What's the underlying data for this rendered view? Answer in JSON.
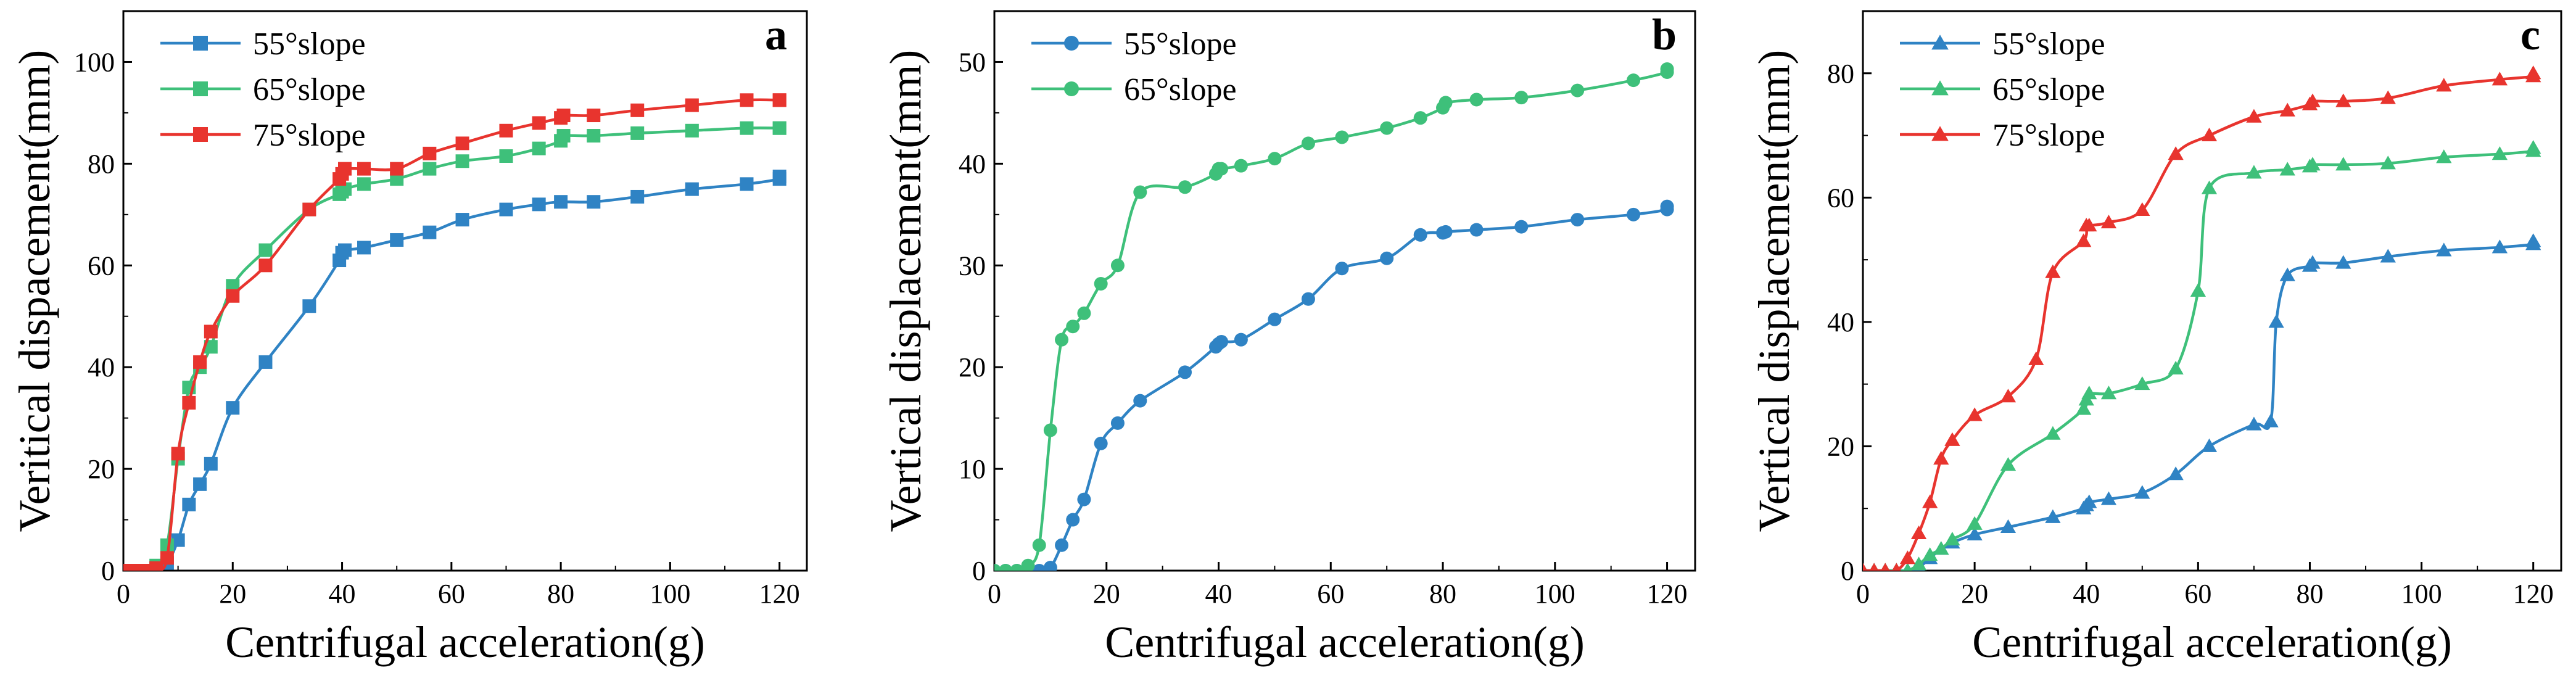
{
  "chart_data": [
    {
      "type": "line",
      "panel_label": "a",
      "xlabel": "Centrifugal acceleration(g)",
      "ylabel": "Veritical dispacement(mm)",
      "xlim": [
        0,
        125
      ],
      "ylim": [
        0,
        110
      ],
      "xticks": [
        0,
        20,
        40,
        60,
        80,
        100,
        120
      ],
      "yticks": [
        0,
        20,
        40,
        60,
        80,
        100
      ],
      "legend_position": "top-left",
      "marker": "square",
      "series": [
        {
          "name": "55°slope",
          "color": "#2f83c4",
          "x": [
            0,
            2,
            4,
            6,
            8,
            10,
            12,
            14,
            16,
            20,
            26,
            34,
            39.5,
            40,
            40.5,
            44,
            50,
            56,
            62,
            70,
            76,
            80,
            86,
            94,
            104,
            114,
            120,
            120
          ],
          "y": [
            0,
            0,
            0,
            0.5,
            1.5,
            6,
            13,
            17,
            21,
            32,
            41,
            52,
            61,
            62.5,
            63,
            63.5,
            65,
            66.5,
            69,
            71,
            72,
            72.5,
            72.5,
            73.5,
            75,
            76,
            77,
            77.5
          ]
        },
        {
          "name": "65°slope",
          "color": "#3ec07a",
          "x": [
            0,
            2,
            4,
            6,
            8,
            10,
            12,
            14,
            16,
            20,
            26,
            34,
            39.5,
            40,
            40.5,
            44,
            50,
            56,
            62,
            70,
            76,
            80,
            80.5,
            86,
            94,
            104,
            114,
            120,
            120
          ],
          "y": [
            0,
            0,
            0,
            1,
            5,
            22,
            36,
            40,
            44,
            56,
            63,
            71,
            74,
            74.5,
            75,
            76,
            77,
            79,
            80.5,
            81.5,
            83,
            84.5,
            85.5,
            85.5,
            86,
            86.5,
            87,
            87,
            87
          ]
        },
        {
          "name": "75°slope",
          "color": "#e8342e",
          "x": [
            0,
            2,
            4,
            6,
            8,
            10,
            12,
            14,
            16,
            20,
            26,
            34,
            39.5,
            40,
            40.5,
            44,
            50,
            56,
            62,
            70,
            76,
            80,
            80.5,
            86,
            94,
            104,
            114,
            120,
            120
          ],
          "y": [
            0,
            0,
            0,
            0.5,
            2.5,
            23,
            33,
            41,
            47,
            54,
            60,
            71,
            77,
            78,
            79,
            79,
            79,
            82,
            84,
            86.5,
            88,
            89,
            89.5,
            89.5,
            90.5,
            91.5,
            92.5,
            92.5,
            92.5
          ]
        }
      ]
    },
    {
      "type": "line",
      "panel_label": "b",
      "xlabel": "Centrifugal acceleration(g)",
      "ylabel": "Vertical displacement(mm)",
      "xlim": [
        0,
        125
      ],
      "ylim": [
        0,
        55
      ],
      "xticks": [
        0,
        20,
        40,
        60,
        80,
        100,
        120
      ],
      "yticks": [
        0,
        10,
        20,
        30,
        40,
        50
      ],
      "legend_position": "top-left",
      "marker": "circle",
      "series": [
        {
          "name": "55°slope",
          "color": "#2f83c4",
          "x": [
            0,
            2,
            4,
            6,
            8,
            10,
            12,
            14,
            16,
            19,
            22,
            26,
            34,
            39.5,
            40,
            40.5,
            44,
            50,
            56,
            62,
            70,
            76,
            80,
            80.5,
            86,
            94,
            104,
            114,
            120,
            120
          ],
          "y": [
            0,
            0,
            0,
            0,
            0,
            0.3,
            2.5,
            5,
            7,
            12.5,
            14.5,
            16.7,
            19.5,
            22,
            22.3,
            22.5,
            22.7,
            24.7,
            26.7,
            29.7,
            30.7,
            33,
            33.2,
            33.3,
            33.5,
            33.8,
            34.5,
            35,
            35.5,
            35.8
          ]
        },
        {
          "name": "65°slope",
          "color": "#3ec07a",
          "x": [
            0,
            2,
            4,
            6,
            8,
            10,
            12,
            14,
            16,
            19,
            22,
            26,
            34,
            39.5,
            40,
            40.5,
            44,
            50,
            56,
            62,
            70,
            76,
            80,
            80.5,
            86,
            94,
            104,
            114,
            120,
            120
          ],
          "y": [
            0,
            0,
            0,
            0.5,
            2.5,
            13.8,
            22.7,
            24,
            25.3,
            28.2,
            30,
            37.2,
            37.7,
            39,
            39.5,
            39.5,
            39.8,
            40.5,
            42,
            42.6,
            43.5,
            44.5,
            45.5,
            46,
            46.3,
            46.5,
            47.2,
            48.2,
            49,
            49.3
          ]
        }
      ]
    },
    {
      "type": "line",
      "panel_label": "c",
      "xlabel": "Centrifugal acceleration(g)",
      "ylabel": "Vertical displacement(mm)",
      "xlim": [
        0,
        125
      ],
      "ylim": [
        0,
        90
      ],
      "xticks": [
        0,
        20,
        40,
        60,
        80,
        100,
        120
      ],
      "yticks": [
        0,
        20,
        40,
        60,
        80
      ],
      "legend_position": "top-left",
      "marker": "triangle",
      "series": [
        {
          "name": "55°slope",
          "color": "#2f83c4",
          "x": [
            0,
            2,
            4,
            6,
            8,
            10,
            12,
            14,
            16,
            20,
            26,
            34,
            39.5,
            40,
            40.5,
            44,
            50,
            56,
            62,
            70,
            73,
            74,
            76,
            80,
            80.5,
            86,
            94,
            104,
            114,
            120,
            120
          ],
          "y": [
            0,
            0,
            0,
            0,
            0,
            0.5,
            2,
            3.5,
            4.5,
            5.8,
            7,
            8.6,
            10,
            10.5,
            11,
            11.5,
            12.5,
            15.5,
            20,
            23.5,
            24,
            40,
            47.5,
            49,
            49.5,
            49.5,
            50.5,
            51.5,
            52,
            52.5,
            53
          ]
        },
        {
          "name": "65°slope",
          "color": "#3ec07a",
          "x": [
            0,
            2,
            4,
            6,
            8,
            10,
            12,
            14,
            16,
            20,
            26,
            34,
            39.5,
            40,
            40.5,
            44,
            50,
            56,
            60,
            62,
            70,
            76,
            80,
            80.5,
            86,
            94,
            104,
            114,
            120,
            120
          ],
          "y": [
            0,
            0,
            0,
            0,
            0,
            1,
            2.5,
            3.5,
            5,
            7.5,
            17,
            22,
            26,
            27.5,
            28.5,
            28.5,
            30,
            32.5,
            45,
            61.5,
            64,
            64.5,
            65,
            65.3,
            65.3,
            65.5,
            66.5,
            67,
            67.5,
            68
          ]
        },
        {
          "name": "75°slope",
          "color": "#e8342e",
          "x": [
            0,
            2,
            4,
            6,
            8,
            10,
            12,
            14,
            16,
            20,
            26,
            31,
            34,
            39.5,
            40,
            40.5,
            44,
            50,
            56,
            62,
            70,
            76,
            80,
            80.5,
            86,
            94,
            104,
            114,
            120,
            120
          ],
          "y": [
            0,
            0,
            0,
            0,
            2,
            6,
            11,
            18,
            21,
            25,
            28,
            34,
            48,
            53,
            55.5,
            55.5,
            56,
            58,
            67,
            70,
            73,
            74,
            75,
            75.5,
            75.5,
            76,
            78,
            79,
            79.5,
            80
          ]
        }
      ]
    }
  ]
}
